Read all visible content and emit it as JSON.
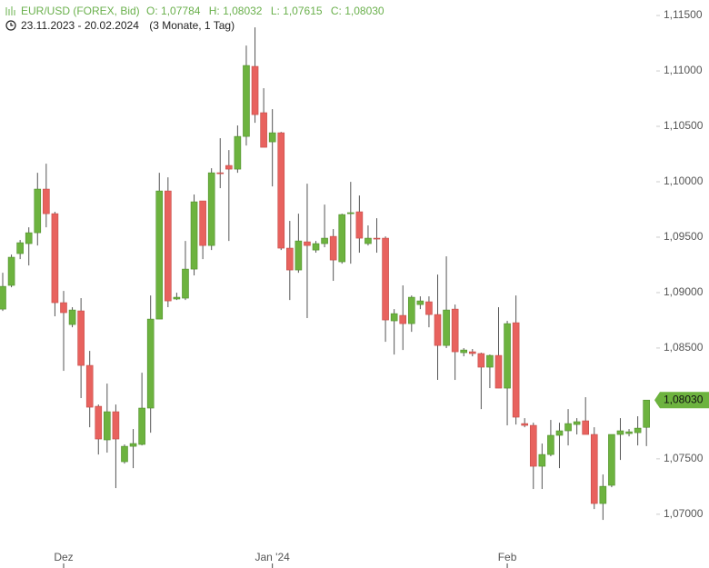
{
  "chart_data": {
    "type": "candlestick",
    "title": "EUR/USD (FOREX, Bid)",
    "ohlc_labels": [
      "O: 1,07784",
      "H: 1,08032",
      "L: 1,07615",
      "C: 1,08030"
    ],
    "date_range": "23.11.2023 - 20.02.2024",
    "period": "(3 Monate, 1 Tag)",
    "last_price_label": "1,08030",
    "up_color": "#6db33f",
    "down_color": "#e8625e",
    "categories": [
      null,
      null,
      null,
      null,
      null,
      null,
      null,
      "Dez",
      null,
      null,
      null,
      null,
      null,
      null,
      null,
      null,
      null,
      null,
      null,
      null,
      null,
      null,
      null,
      null,
      null,
      null,
      null,
      null,
      null,
      null,
      null,
      "Jan '24",
      null,
      null,
      null,
      null,
      null,
      null,
      null,
      null,
      null,
      null,
      null,
      null,
      null,
      null,
      null,
      null,
      null,
      null,
      null,
      null,
      null,
      null,
      null,
      null,
      null,
      null,
      "Feb",
      null,
      null,
      null,
      null,
      null,
      null,
      null,
      null,
      null,
      null,
      null,
      null,
      null,
      null,
      null,
      null
    ],
    "open": [
      1.08851,
      1.09065,
      1.09352,
      1.09442,
      1.0954,
      1.09934,
      1.09712,
      1.08909,
      1.08712,
      1.08835,
      1.08343,
      1.07974,
      1.07671,
      1.07925,
      1.07474,
      1.07613,
      1.0763,
      1.07958,
      1.08761,
      1.09917,
      1.08942,
      1.0895,
      1.09212,
      1.09827,
      1.09425,
      1.10081,
      1.10147,
      1.10114,
      1.10409,
      1.11041,
      1.10623,
      1.1036,
      1.10442,
      1.09401,
      1.09204,
      1.09458,
      1.09384,
      1.09442,
      1.09507,
      1.09278,
      1.09712,
      1.09729,
      1.09442,
      1.09491,
      1.09491,
      1.08745,
      1.08794,
      1.0872,
      1.08892,
      1.08917,
      1.08802,
      1.08523,
      1.08851,
      1.08458,
      1.08466,
      1.0845,
      1.08327,
      1.08433,
      1.08138,
      1.08728,
      1.07818,
      1.07802,
      1.07433,
      1.07539,
      1.07712,
      1.07753,
      1.0781,
      1.07843,
      1.0772,
      1.07097,
      1.07261,
      1.0772,
      1.07728,
      1.07736,
      1.07784
    ],
    "high": [
      1.09179,
      1.09343,
      1.09475,
      1.09589,
      1.10081,
      1.10163,
      1.09729,
      1.09015,
      1.08868,
      1.0895,
      1.08474,
      1.0799,
      1.08179,
      1.0799,
      1.0763,
      1.07769,
      1.08277,
      1.08974,
      1.10081,
      1.1004,
      1.08999,
      1.09466,
      1.09885,
      1.09827,
      1.10122,
      1.10393,
      1.10286,
      1.10508,
      1.11229,
      1.11393,
      1.10844,
      1.10655,
      1.1045,
      1.09647,
      1.09712,
      1.09983,
      1.09466,
      1.09794,
      1.09573,
      1.09712,
      1.09999,
      1.09876,
      1.09606,
      1.09671,
      1.09507,
      1.08851,
      1.09065,
      1.08974,
      1.08966,
      1.08966,
      1.09163,
      1.09327,
      1.08892,
      1.08499,
      1.08491,
      1.08458,
      1.08441,
      1.08868,
      1.08745,
      1.08974,
      1.07867,
      1.07826,
      1.07638,
      1.07851,
      1.07826,
      1.07949,
      1.07867,
      1.08056,
      1.07785,
      1.07359,
      1.0772,
      1.07867,
      1.07769,
      1.07884,
      1.08032
    ],
    "low": [
      1.08835,
      1.09048,
      1.09302,
      1.09245,
      1.09425,
      1.09589,
      1.08786,
      1.08294,
      1.08687,
      1.08048,
      1.07785,
      1.07539,
      1.07556,
      1.07236,
      1.07457,
      1.07416,
      1.07621,
      1.07736,
      1.08761,
      1.08868,
      1.08933,
      1.08933,
      1.09155,
      1.09302,
      1.09384,
      1.09942,
      1.09466,
      1.10081,
      1.10327,
      1.10532,
      1.10311,
      1.09958,
      1.09384,
      1.08933,
      1.09179,
      1.0877,
      1.0936,
      1.09409,
      1.09106,
      1.09261,
      1.09261,
      1.0936,
      1.09425,
      1.0936,
      1.08556,
      1.08441,
      1.08482,
      1.08646,
      1.08851,
      1.08687,
      1.08212,
      1.08499,
      1.08212,
      1.08425,
      1.08425,
      1.07949,
      1.08138,
      1.08138,
      1.07802,
      1.0781,
      1.07785,
      1.07228,
      1.07228,
      1.07523,
      1.07416,
      1.07621,
      1.0772,
      1.0772,
      1.07047,
      1.06949,
      1.07244,
      1.0749,
      1.07703,
      1.07621,
      1.07615
    ],
    "close": [
      1.09056,
      1.09319,
      1.0945,
      1.0954,
      1.09934,
      1.09712,
      1.08909,
      1.08819,
      1.08843,
      1.08343,
      1.07966,
      1.07679,
      1.07925,
      1.07679,
      1.07613,
      1.07638,
      1.07958,
      1.08761,
      1.09917,
      1.08925,
      1.08958,
      1.09212,
      1.09819,
      1.09425,
      1.10081,
      1.10073,
      1.10114,
      1.10409,
      1.11049,
      1.10606,
      1.10311,
      1.10442,
      1.09401,
      1.09204,
      1.09466,
      1.09425,
      1.09442,
      1.09491,
      1.09294,
      1.09704,
      1.09721,
      1.09491,
      1.09491,
      1.09483,
      1.08753,
      1.0881,
      1.0872,
      1.08958,
      1.08925,
      1.08802,
      1.08523,
      1.08843,
      1.08466,
      1.08482,
      1.0845,
      1.08327,
      1.08433,
      1.08138,
      1.0872,
      1.07876,
      1.07802,
      1.07433,
      1.07539,
      1.07712,
      1.07753,
      1.07818,
      1.07835,
      1.0772,
      1.07097,
      1.07252,
      1.0772,
      1.07753,
      1.07744,
      1.07777,
      1.0803
    ],
    "ylim": [
      1.0672,
      1.1164
    ],
    "yticks": [
      {
        "value": 1.07,
        "label": "1,07000"
      },
      {
        "value": 1.075,
        "label": "1,07500"
      },
      {
        "value": 1.08,
        "label": "1,08000"
      },
      {
        "value": 1.085,
        "label": "1,08500"
      },
      {
        "value": 1.09,
        "label": "1,09000"
      },
      {
        "value": 1.095,
        "label": "1,09500"
      },
      {
        "value": 1.1,
        "label": "1,10000"
      },
      {
        "value": 1.105,
        "label": "1,10500"
      },
      {
        "value": 1.11,
        "label": "1,11000"
      },
      {
        "value": 1.115,
        "label": "1,11500"
      }
    ]
  }
}
